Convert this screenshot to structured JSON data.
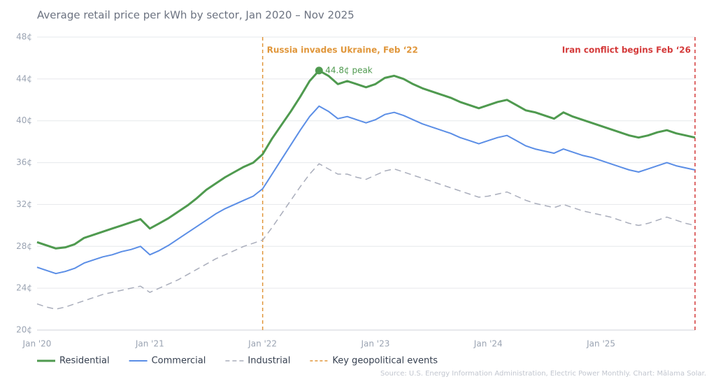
{
  "chart_data": {
    "type": "line",
    "title": "Average retail price per kWh by sector, Jan 2020 – Nov 2025",
    "categories": [
      "Jan '20",
      null,
      null,
      null,
      null,
      null,
      null,
      null,
      null,
      null,
      null,
      null,
      "Jan '21",
      null,
      null,
      null,
      null,
      null,
      null,
      null,
      null,
      null,
      null,
      null,
      "Jan '22",
      null,
      null,
      null,
      null,
      null,
      null,
      null,
      null,
      null,
      null,
      null,
      "Jan '23",
      null,
      null,
      null,
      null,
      null,
      null,
      null,
      null,
      null,
      null,
      null,
      "Jan '24",
      null,
      null,
      null,
      null,
      null,
      null,
      null,
      null,
      null,
      null,
      null,
      "Jan '25",
      null,
      null,
      null,
      null,
      null,
      null,
      null,
      null,
      null,
      null
    ],
    "series": [
      {
        "name": "Residential",
        "color": "#4f9a4f",
        "dashed": false,
        "width": 3,
        "values": [
          28.4,
          28.1,
          27.8,
          27.9,
          28.2,
          28.8,
          29.1,
          29.4,
          29.7,
          30.0,
          30.3,
          30.6,
          29.7,
          30.2,
          30.7,
          31.3,
          31.9,
          32.6,
          33.4,
          34.0,
          34.6,
          35.1,
          35.6,
          36.0,
          36.8,
          38.3,
          39.6,
          40.9,
          42.3,
          43.8,
          44.8,
          44.3,
          43.5,
          43.8,
          43.5,
          43.2,
          43.5,
          44.1,
          44.3,
          44.0,
          43.5,
          43.1,
          42.8,
          42.5,
          42.2,
          41.8,
          41.5,
          41.2,
          41.5,
          41.8,
          42.0,
          41.5,
          41.0,
          40.8,
          40.5,
          40.2,
          40.8,
          40.4,
          40.1,
          39.8,
          39.5,
          39.2,
          38.9,
          38.6,
          38.4,
          38.6,
          38.9,
          39.1,
          38.8,
          38.6,
          38.4
        ]
      },
      {
        "name": "Commercial",
        "color": "#5b8ee6",
        "dashed": false,
        "width": 2,
        "values": [
          26.0,
          25.7,
          25.4,
          25.6,
          25.9,
          26.4,
          26.7,
          27.0,
          27.2,
          27.5,
          27.7,
          28.0,
          27.2,
          27.6,
          28.1,
          28.7,
          29.3,
          29.9,
          30.5,
          31.1,
          31.6,
          32.0,
          32.4,
          32.8,
          33.5,
          34.9,
          36.3,
          37.7,
          39.1,
          40.4,
          41.4,
          40.9,
          40.2,
          40.4,
          40.1,
          39.8,
          40.1,
          40.6,
          40.8,
          40.5,
          40.1,
          39.7,
          39.4,
          39.1,
          38.8,
          38.4,
          38.1,
          37.8,
          38.1,
          38.4,
          38.6,
          38.1,
          37.6,
          37.3,
          37.1,
          36.9,
          37.3,
          37.0,
          36.7,
          36.5,
          36.2,
          35.9,
          35.6,
          35.3,
          35.1,
          35.4,
          35.7,
          36.0,
          35.7,
          35.5,
          35.3
        ]
      },
      {
        "name": "Industrial",
        "color": "#a9adbb",
        "dashed": true,
        "width": 1.5,
        "values": [
          22.5,
          22.2,
          22.0,
          22.2,
          22.5,
          22.8,
          23.1,
          23.4,
          23.6,
          23.8,
          24.0,
          24.2,
          23.6,
          24.0,
          24.4,
          24.8,
          25.3,
          25.8,
          26.3,
          26.8,
          27.2,
          27.6,
          28.0,
          28.3,
          28.6,
          29.8,
          31.1,
          32.4,
          33.7,
          34.9,
          35.9,
          35.4,
          34.9,
          34.9,
          34.6,
          34.4,
          34.8,
          35.2,
          35.4,
          35.1,
          34.8,
          34.5,
          34.2,
          33.9,
          33.6,
          33.3,
          33.0,
          32.7,
          32.8,
          33.0,
          33.2,
          32.8,
          32.4,
          32.1,
          31.9,
          31.7,
          32.0,
          31.7,
          31.4,
          31.2,
          31.0,
          30.8,
          30.5,
          30.2,
          30.0,
          30.2,
          30.5,
          30.8,
          30.5,
          30.2,
          30.0
        ]
      }
    ],
    "peak_label": "44.8¢ peak",
    "events": [
      {
        "label": "Russia invades Ukraine, Feb ‘22",
        "x": 24,
        "color": "#e0963a"
      },
      {
        "label": "Iran conflict begins Feb ‘26",
        "x": 70,
        "color": "#d43a3a"
      }
    ],
    "events_legend": "Key geopolitical events",
    "ylim": [
      20,
      48
    ],
    "yticks": [
      {
        "value": 20,
        "label": "20¢"
      },
      {
        "value": 24,
        "label": "24¢"
      },
      {
        "value": 28,
        "label": "28¢"
      },
      {
        "value": 32,
        "label": "32¢"
      },
      {
        "value": 36,
        "label": "36¢"
      },
      {
        "value": 40,
        "label": "40¢"
      },
      {
        "value": 44,
        "label": "44¢"
      },
      {
        "value": 48,
        "label": "48¢"
      }
    ],
    "grid": true,
    "source": "Source: U.S. Energy Information Administration, Electric Power Monthly. Chart: Mālama Solar."
  }
}
